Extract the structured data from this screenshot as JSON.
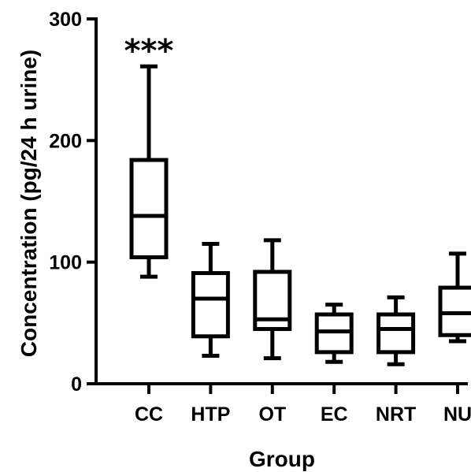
{
  "chart_data": {
    "type": "box",
    "xlabel": "Group",
    "ylabel": "Concentration (pg/24 h urine)",
    "ylim": [
      0,
      300
    ],
    "yticks": [
      0,
      100,
      200,
      300
    ],
    "categories": [
      "CC",
      "HTP",
      "OT",
      "EC",
      "NRT",
      "NU"
    ],
    "boxes": [
      {
        "min": 88,
        "q1": 104,
        "median": 138,
        "q3": 184,
        "max": 261,
        "annotation": "***"
      },
      {
        "min": 23,
        "q1": 39,
        "median": 70,
        "q3": 91,
        "max": 115,
        "annotation": ""
      },
      {
        "min": 21,
        "q1": 45,
        "median": 53,
        "q3": 92,
        "max": 118,
        "annotation": ""
      },
      {
        "min": 18,
        "q1": 26,
        "median": 43,
        "q3": 57,
        "max": 65,
        "annotation": ""
      },
      {
        "min": 16,
        "q1": 26,
        "median": 45,
        "q3": 57,
        "max": 71,
        "annotation": ""
      },
      {
        "min": 35,
        "q1": 40,
        "median": 58,
        "q3": 79,
        "max": 107,
        "annotation": ""
      }
    ],
    "colors": {
      "stroke": "#000000",
      "fill": "#ffffff"
    }
  }
}
